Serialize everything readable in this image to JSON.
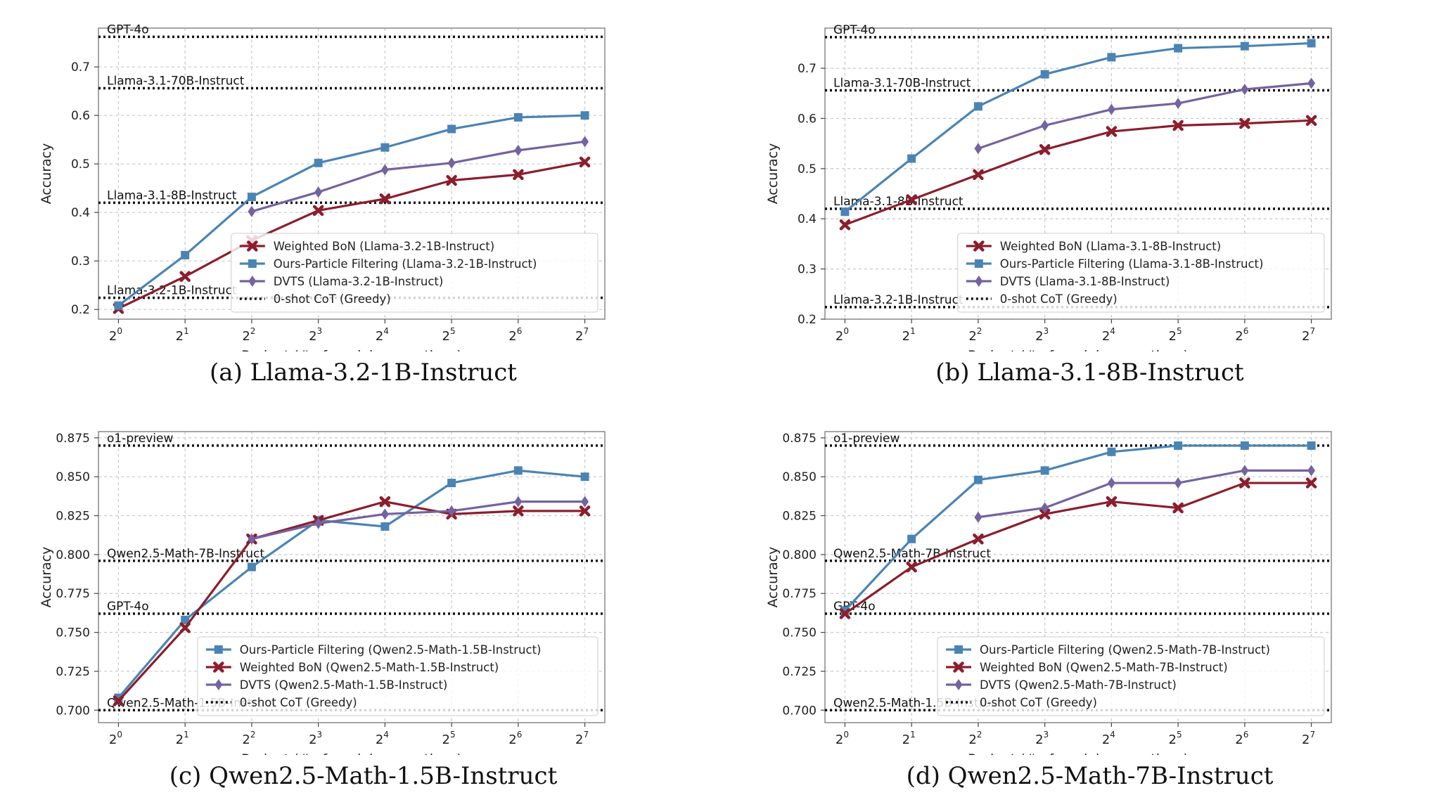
{
  "colors": {
    "weighted_bon": "#8b1e2d",
    "particle_filtering": "#4a84b4",
    "dvts": "#7463a0",
    "reference": "#111111",
    "grid": "#c8c8c8"
  },
  "chart_data": [
    {
      "type": "line",
      "caption": "(a) Llama-3.2-1B-Instruct",
      "xlabel": "Budget (# of model generations)",
      "ylabel": "Accuracy",
      "x_exponents": [
        0,
        1,
        2,
        3,
        4,
        5,
        6,
        7
      ],
      "x_tick_base": "2",
      "ylim": [
        0.18,
        0.78
      ],
      "yticks": [
        0.2,
        0.3,
        0.4,
        0.5,
        0.6,
        0.7
      ],
      "yticks_text": [
        "0.2",
        "0.3",
        "0.4",
        "0.5",
        "0.6",
        "0.7"
      ],
      "grid": true,
      "legend_position": "lower-right",
      "series": [
        {
          "name": "Weighted BoN (Llama-3.2-1B-Instruct)",
          "key": "weighted_bon",
          "marker": "x",
          "x": [
            0,
            1,
            2,
            3,
            4,
            5,
            6,
            7
          ],
          "values": [
            0.202,
            0.268,
            0.342,
            0.404,
            0.428,
            0.466,
            0.478,
            0.504
          ]
        },
        {
          "name": "Ours-Particle Filtering (Llama-3.2-1B-Instruct)",
          "key": "particle_filtering",
          "marker": "square",
          "x": [
            0,
            1,
            2,
            3,
            4,
            5,
            6,
            7
          ],
          "values": [
            0.208,
            0.312,
            0.432,
            0.502,
            0.534,
            0.572,
            0.596,
            0.6
          ]
        },
        {
          "name": "DVTS (Llama-3.2-1B-Instruct)",
          "key": "dvts",
          "marker": "diamond",
          "x": [
            2,
            3,
            4,
            5,
            6,
            7
          ],
          "values": [
            0.402,
            0.442,
            0.488,
            0.502,
            0.528,
            0.546
          ]
        }
      ],
      "legend_extra": "0-shot CoT (Greedy)",
      "references": [
        {
          "label": "GPT-4o",
          "y": 0.762
        },
        {
          "label": "Llama-3.1-70B-Instruct",
          "y": 0.656
        },
        {
          "label": "Llama-3.1-8B-Instruct",
          "y": 0.42
        },
        {
          "label": "Llama-3.2-1B-Instruct",
          "y": 0.224
        }
      ]
    },
    {
      "type": "line",
      "caption": "(b) Llama-3.1-8B-Instruct",
      "xlabel": "Budget (# of model generations)",
      "ylabel": "Accuracy",
      "x_exponents": [
        0,
        1,
        2,
        3,
        4,
        5,
        6,
        7
      ],
      "x_tick_base": "2",
      "ylim": [
        0.2,
        0.78
      ],
      "yticks": [
        0.2,
        0.3,
        0.4,
        0.5,
        0.6,
        0.7
      ],
      "yticks_text": [
        "0.2",
        "0.3",
        "0.4",
        "0.5",
        "0.6",
        "0.7"
      ],
      "grid": true,
      "legend_position": "lower-right",
      "series": [
        {
          "name": "Weighted BoN (Llama-3.1-8B-Instruct)",
          "key": "weighted_bon",
          "marker": "x",
          "x": [
            0,
            1,
            2,
            3,
            4,
            5,
            6,
            7
          ],
          "values": [
            0.388,
            0.438,
            0.488,
            0.538,
            0.574,
            0.586,
            0.59,
            0.596
          ]
        },
        {
          "name": "Ours-Particle Filtering (Llama-3.1-8B-Instruct)",
          "key": "particle_filtering",
          "marker": "square",
          "x": [
            0,
            1,
            2,
            3,
            4,
            5,
            6,
            7
          ],
          "values": [
            0.414,
            0.52,
            0.624,
            0.688,
            0.722,
            0.74,
            0.744,
            0.75
          ]
        },
        {
          "name": "DVTS (Llama-3.1-8B-Instruct)",
          "key": "dvts",
          "marker": "diamond",
          "x": [
            2,
            3,
            4,
            5,
            6,
            7
          ],
          "values": [
            0.54,
            0.586,
            0.618,
            0.63,
            0.658,
            0.67
          ]
        }
      ],
      "legend_extra": "0-shot CoT (Greedy)",
      "references": [
        {
          "label": "GPT-4o",
          "y": 0.762
        },
        {
          "label": "Llama-3.1-70B-Instruct",
          "y": 0.656
        },
        {
          "label": "Llama-3.1-8B-Instruct",
          "y": 0.42
        },
        {
          "label": "Llama-3.2-1B-Instruct",
          "y": 0.224
        }
      ]
    },
    {
      "type": "line",
      "caption": "(c) Qwen2.5-Math-1.5B-Instruct",
      "xlabel": "Budget (# of model generations)",
      "ylabel": "Accuracy",
      "x_exponents": [
        0,
        1,
        2,
        3,
        4,
        5,
        6,
        7
      ],
      "x_tick_base": "2",
      "ylim": [
        0.692,
        0.879
      ],
      "yticks": [
        0.7,
        0.725,
        0.75,
        0.775,
        0.8,
        0.825,
        0.85,
        0.875
      ],
      "yticks_text": [
        "0.700",
        "0.725",
        "0.750",
        "0.775",
        "0.800",
        "0.825",
        "0.850",
        "0.875"
      ],
      "grid": true,
      "legend_position": "lower-right",
      "series": [
        {
          "name": "Ours-Particle Filtering (Qwen2.5-Math-1.5B-Instruct)",
          "key": "particle_filtering",
          "marker": "square",
          "x": [
            0,
            1,
            2,
            3,
            4,
            5,
            6,
            7
          ],
          "values": [
            0.708,
            0.758,
            0.792,
            0.822,
            0.818,
            0.846,
            0.854,
            0.85
          ]
        },
        {
          "name": "Weighted BoN (Qwen2.5-Math-1.5B-Instruct)",
          "key": "weighted_bon",
          "marker": "x",
          "x": [
            0,
            1,
            2,
            3,
            4,
            5,
            6,
            7
          ],
          "values": [
            0.706,
            0.753,
            0.81,
            0.822,
            0.834,
            0.826,
            0.828,
            0.828
          ]
        },
        {
          "name": "DVTS (Qwen2.5-Math-1.5B-Instruct)",
          "key": "dvts",
          "marker": "diamond",
          "x": [
            2,
            3,
            4,
            5,
            6,
            7
          ],
          "values": [
            0.81,
            0.82,
            0.826,
            0.828,
            0.834,
            0.834
          ]
        }
      ],
      "legend_extra": "0-shot CoT (Greedy)",
      "references": [
        {
          "label": "o1-preview",
          "y": 0.87
        },
        {
          "label": "Qwen2.5-Math-7B-Instruct",
          "y": 0.796
        },
        {
          "label": "GPT-4o",
          "y": 0.762
        },
        {
          "label": "Qwen2.5-Math-1.5B-Instruct",
          "y": 0.7
        }
      ]
    },
    {
      "type": "line",
      "caption": "(d) Qwen2.5-Math-7B-Instruct",
      "xlabel": "Budget (# of model generations)",
      "ylabel": "Accuracy",
      "x_exponents": [
        0,
        1,
        2,
        3,
        4,
        5,
        6,
        7
      ],
      "x_tick_base": "2",
      "ylim": [
        0.692,
        0.879
      ],
      "yticks": [
        0.7,
        0.725,
        0.75,
        0.775,
        0.8,
        0.825,
        0.85,
        0.875
      ],
      "yticks_text": [
        "0.700",
        "0.725",
        "0.750",
        "0.775",
        "0.800",
        "0.825",
        "0.850",
        "0.875"
      ],
      "grid": true,
      "legend_position": "lower-right",
      "series": [
        {
          "name": "Ours-Particle Filtering (Qwen2.5-Math-7B-Instruct)",
          "key": "particle_filtering",
          "marker": "square",
          "x": [
            0,
            1,
            2,
            3,
            4,
            5,
            6,
            7
          ],
          "values": [
            0.764,
            0.81,
            0.848,
            0.854,
            0.866,
            0.87,
            0.87,
            0.87
          ]
        },
        {
          "name": "Weighted BoN (Qwen2.5-Math-7B-Instruct)",
          "key": "weighted_bon",
          "marker": "x",
          "x": [
            0,
            1,
            2,
            3,
            4,
            5,
            6,
            7
          ],
          "values": [
            0.762,
            0.792,
            0.81,
            0.826,
            0.834,
            0.83,
            0.846,
            0.846
          ]
        },
        {
          "name": "DVTS (Qwen2.5-Math-7B-Instruct)",
          "key": "dvts",
          "marker": "diamond",
          "x": [
            2,
            3,
            4,
            5,
            6,
            7
          ],
          "values": [
            0.824,
            0.83,
            0.846,
            0.846,
            0.854,
            0.854
          ]
        }
      ],
      "legend_extra": "0-shot CoT (Greedy)",
      "references": [
        {
          "label": "o1-preview",
          "y": 0.87
        },
        {
          "label": "Qwen2.5-Math-7B-Instruct",
          "y": 0.796
        },
        {
          "label": "GPT-4o",
          "y": 0.762
        },
        {
          "label": "Qwen2.5-Math-1.5B-Instruct",
          "y": 0.7
        }
      ]
    }
  ]
}
